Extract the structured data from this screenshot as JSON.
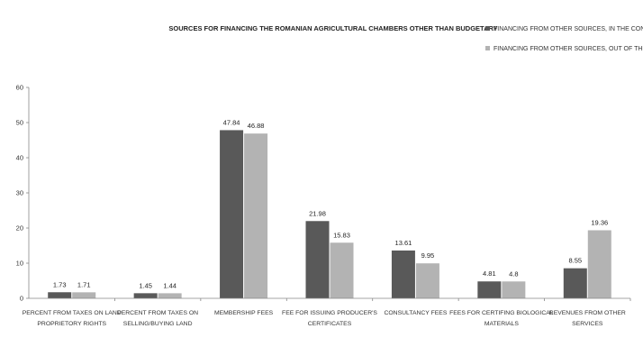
{
  "chart_data": {
    "type": "bar",
    "title": "SOURCES FOR FINANCING THE ROMANIAN AGRICULTURAL CHAMBERS  OTHER THAN BUDGETARY",
    "xlabel": "",
    "ylabel": "",
    "ylim": [
      0,
      60
    ],
    "yticks": [
      0,
      10,
      20,
      30,
      40,
      50,
      60
    ],
    "grid": false,
    "legend_position": "top-right",
    "categories": [
      [
        "PERCENT FROM TAXES ON LAND",
        "PROPRIETORY RIGHTS"
      ],
      [
        "PERCENT FROM TAXES ON",
        "SELLING/BUYING LAND"
      ],
      [
        "MEMBERSHIP FEES"
      ],
      [
        "FEE FOR ISSUING PRODUCER'S",
        "CERTIFICATES"
      ],
      [
        "CONSULTANCY FEES"
      ],
      [
        "FEES FOR CERTIFING BIOLOGICAL",
        "MATERIALS"
      ],
      [
        "REVENUES FROM OTHER",
        "SERVICES"
      ]
    ],
    "series": [
      {
        "name": "FINANCING FROM OTHER SOURCES, IN THE CONTEXT",
        "color": "#595959",
        "values": [
          1.73,
          1.45,
          47.84,
          21.98,
          13.61,
          4.81,
          8.55
        ],
        "labels": [
          "1.73",
          "1.45",
          "47.84",
          "21.98",
          "13.61",
          "4.81",
          "8.55"
        ]
      },
      {
        "name": "FINANCING FROM OTHER SOURCES, OUT OF THE CONTEXT",
        "color": "#b3b3b3",
        "values": [
          1.71,
          1.44,
          46.88,
          15.83,
          9.95,
          4.8,
          19.36
        ],
        "labels": [
          "1.71",
          "1.44",
          "46.88",
          "15.83",
          "9.95",
          "4.8",
          "19.36"
        ]
      }
    ]
  }
}
